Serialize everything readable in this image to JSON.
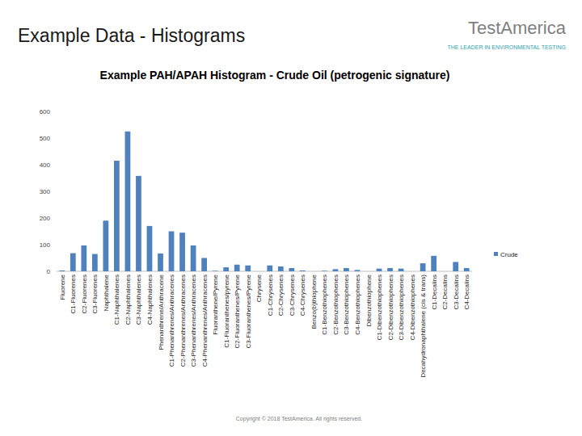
{
  "header": {
    "title": "Example Data - Histograms",
    "logo": "TestAmerica",
    "tagline": "THE LEADER IN ENVIRONMENTAL TESTING"
  },
  "footer": {
    "copyright": "Copyright © 2018 TestAmerica. All rights reserved."
  },
  "chart_data": {
    "type": "bar",
    "title": "Example PAH/APAH Histogram - Crude Oil (petrogenic signature)",
    "categories": [
      "Fluorene",
      "C1-Fluorenes",
      "C2-Fluorenes",
      "C3-Fluorenes",
      "Naphthalene",
      "C1-Naphthalenes",
      "C2-Naphthalenes",
      "C3-Naphthalenes",
      "C4-Naphthalenes",
      "Phenanthrene/Anthracene",
      "C1-Phenanthrenes/Anthracenes",
      "C2-Phenanthrenes/Anthracenes",
      "C3-Phenanthrenes/Anthracenes",
      "C4-Phenanthrenes/Anthracenes",
      "Fluoranthene/Pyrene",
      "C1-Fluoranthenes/pyrene",
      "C2-Fluoranthenes/Pyrene",
      "C3-Fluoranthenes/Pyrene",
      "Chrysene",
      "C1-Chrysenes",
      "C2-Chrysenes",
      "C3-Chrysenes",
      "C4-Chrysenes",
      "Benzo(b)thiophene",
      "C1-Benzothiophenes",
      "C2-Benzothiophenes",
      "C3-Benzothiophenes",
      "C4-Benzothiophenes",
      "Dibenzothiophene",
      "C1-Dibenzothiophenes",
      "C2-Dibenzothiophenes",
      "C3-Dibenzothiophenes",
      "C4-Dibenzothiophenes",
      "Decahydronaphthalene (cis & trans)",
      "C1-Decalins",
      "C2-Decalins",
      "C3-Decalins",
      "C4-Decalins"
    ],
    "series": [
      {
        "name": "Crude",
        "color": "#4f81bd",
        "values": [
          3,
          68,
          97,
          65,
          190,
          415,
          525,
          358,
          170,
          67,
          150,
          145,
          97,
          50,
          2,
          15,
          25,
          22,
          0,
          22,
          18,
          12,
          3,
          0,
          2,
          8,
          12,
          5,
          0,
          10,
          12,
          10,
          0,
          30,
          58,
          0,
          35,
          12
        ]
      }
    ],
    "ylim": [
      0,
      600
    ],
    "yticks": [
      0,
      100,
      200,
      300,
      400,
      500,
      600
    ],
    "grid": false,
    "legend": "right"
  }
}
